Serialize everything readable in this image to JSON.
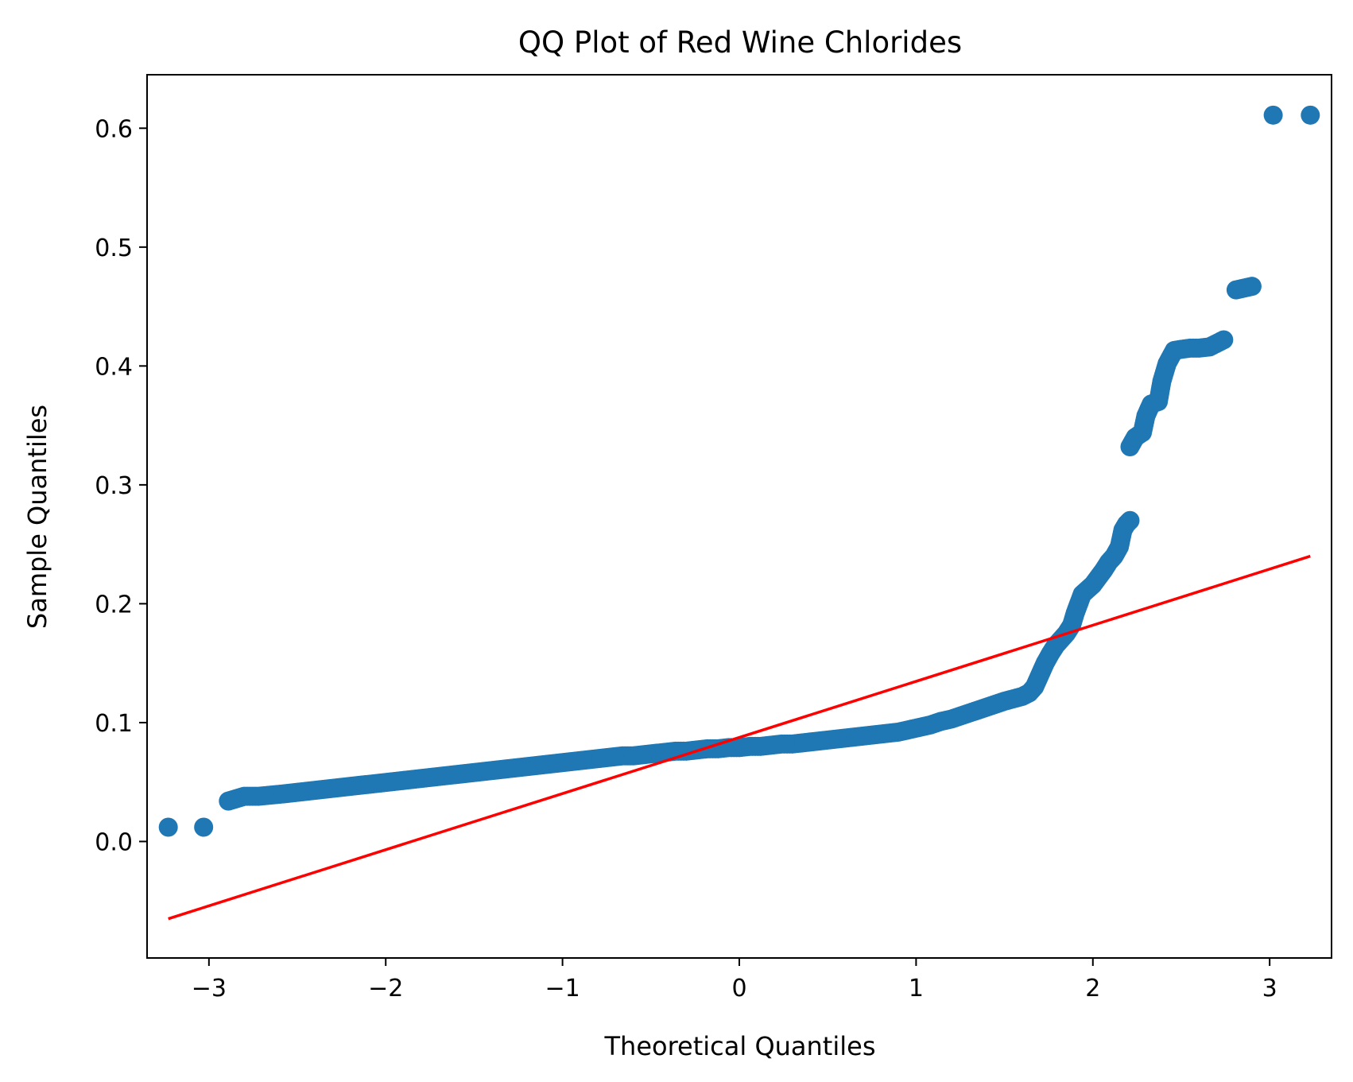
{
  "chart_data": {
    "type": "scatter",
    "title": "QQ Plot of Red Wine Chlorides",
    "xlabel": "Theoretical Quantiles",
    "ylabel": "Sample Quantiles",
    "xlim": [
      -3.35,
      3.35
    ],
    "ylim": [
      -0.098,
      0.645
    ],
    "x_ticks": [
      {
        "value": -3,
        "label": "−3"
      },
      {
        "value": -2,
        "label": "−2"
      },
      {
        "value": -1,
        "label": "−1"
      },
      {
        "value": 0,
        "label": "0"
      },
      {
        "value": 1,
        "label": "1"
      },
      {
        "value": 2,
        "label": "2"
      },
      {
        "value": 3,
        "label": "3"
      }
    ],
    "y_ticks": [
      {
        "value": 0.0,
        "label": "0.0"
      },
      {
        "value": 0.1,
        "label": "0.1"
      },
      {
        "value": 0.2,
        "label": "0.2"
      },
      {
        "value": 0.3,
        "label": "0.3"
      },
      {
        "value": 0.4,
        "label": "0.4"
      },
      {
        "value": 0.5,
        "label": "0.5"
      },
      {
        "value": 0.6,
        "label": "0.6"
      }
    ],
    "grid": false,
    "legend": "none",
    "marker_color": "#1f77b4",
    "line_color": "#ff0000",
    "reference_line": {
      "x": [
        -3.23,
        3.23
      ],
      "y": [
        -0.065,
        0.24
      ]
    },
    "series": [
      {
        "points": [
          [
            -3.23,
            0.012
          ],
          [
            -3.03,
            0.012
          ],
          [
            -2.89,
            0.034
          ],
          [
            -2.8,
            0.038
          ],
          [
            -2.72,
            0.038
          ],
          [
            -2.65,
            0.039
          ],
          [
            -2.58,
            0.04
          ],
          [
            -2.52,
            0.041
          ],
          [
            -2.46,
            0.042
          ],
          [
            -2.4,
            0.043
          ],
          [
            -2.34,
            0.044
          ],
          [
            -2.28,
            0.045
          ],
          [
            -2.22,
            0.046
          ],
          [
            -2.16,
            0.047
          ],
          [
            -2.1,
            0.048
          ],
          [
            -2.04,
            0.049
          ],
          [
            -1.98,
            0.05
          ],
          [
            -1.92,
            0.051
          ],
          [
            -1.86,
            0.052
          ],
          [
            -1.8,
            0.053
          ],
          [
            -1.74,
            0.054
          ],
          [
            -1.68,
            0.055
          ],
          [
            -1.62,
            0.056
          ],
          [
            -1.56,
            0.057
          ],
          [
            -1.5,
            0.058
          ],
          [
            -1.44,
            0.059
          ],
          [
            -1.38,
            0.06
          ],
          [
            -1.32,
            0.061
          ],
          [
            -1.26,
            0.062
          ],
          [
            -1.2,
            0.063
          ],
          [
            -1.14,
            0.064
          ],
          [
            -1.08,
            0.065
          ],
          [
            -1.02,
            0.066
          ],
          [
            -0.96,
            0.067
          ],
          [
            -0.9,
            0.068
          ],
          [
            -0.84,
            0.069
          ],
          [
            -0.78,
            0.07
          ],
          [
            -0.72,
            0.071
          ],
          [
            -0.66,
            0.072
          ],
          [
            -0.6,
            0.072
          ],
          [
            -0.54,
            0.073
          ],
          [
            -0.48,
            0.074
          ],
          [
            -0.42,
            0.075
          ],
          [
            -0.36,
            0.076
          ],
          [
            -0.3,
            0.076
          ],
          [
            -0.24,
            0.077
          ],
          [
            -0.18,
            0.078
          ],
          [
            -0.12,
            0.078
          ],
          [
            -0.06,
            0.079
          ],
          [
            0.0,
            0.079
          ],
          [
            0.06,
            0.08
          ],
          [
            0.12,
            0.08
          ],
          [
            0.18,
            0.081
          ],
          [
            0.24,
            0.082
          ],
          [
            0.3,
            0.082
          ],
          [
            0.36,
            0.083
          ],
          [
            0.42,
            0.084
          ],
          [
            0.48,
            0.085
          ],
          [
            0.54,
            0.086
          ],
          [
            0.6,
            0.087
          ],
          [
            0.66,
            0.088
          ],
          [
            0.72,
            0.089
          ],
          [
            0.78,
            0.09
          ],
          [
            0.84,
            0.091
          ],
          [
            0.9,
            0.092
          ],
          [
            0.96,
            0.094
          ],
          [
            1.02,
            0.096
          ],
          [
            1.08,
            0.098
          ],
          [
            1.14,
            0.101
          ],
          [
            1.2,
            0.103
          ],
          [
            1.26,
            0.106
          ],
          [
            1.32,
            0.109
          ],
          [
            1.38,
            0.112
          ],
          [
            1.44,
            0.115
          ],
          [
            1.5,
            0.118
          ],
          [
            1.55,
            0.12
          ],
          [
            1.6,
            0.122
          ],
          [
            1.64,
            0.125
          ],
          [
            1.67,
            0.13
          ],
          [
            1.7,
            0.14
          ],
          [
            1.73,
            0.15
          ],
          [
            1.76,
            0.158
          ],
          [
            1.79,
            0.165
          ],
          [
            1.82,
            0.17
          ],
          [
            1.85,
            0.175
          ],
          [
            1.88,
            0.182
          ],
          [
            1.9,
            0.192
          ],
          [
            1.92,
            0.2
          ],
          [
            1.94,
            0.208
          ],
          [
            1.97,
            0.212
          ],
          [
            2.0,
            0.216
          ],
          [
            2.03,
            0.222
          ],
          [
            2.06,
            0.228
          ],
          [
            2.09,
            0.235
          ],
          [
            2.12,
            0.24
          ],
          [
            2.15,
            0.248
          ],
          [
            2.17,
            0.262
          ],
          [
            2.19,
            0.267
          ],
          [
            2.21,
            0.27
          ],
          [
            2.21,
            0.332
          ],
          [
            2.24,
            0.34
          ],
          [
            2.28,
            0.344
          ],
          [
            2.3,
            0.358
          ],
          [
            2.33,
            0.368
          ],
          [
            2.37,
            0.37
          ],
          [
            2.39,
            0.387
          ],
          [
            2.42,
            0.402
          ],
          [
            2.46,
            0.413
          ],
          [
            2.5,
            0.414
          ],
          [
            2.55,
            0.415
          ],
          [
            2.6,
            0.415
          ],
          [
            2.66,
            0.416
          ],
          [
            2.74,
            0.422
          ],
          [
            2.81,
            0.464
          ],
          [
            2.9,
            0.467
          ],
          [
            3.02,
            0.611
          ],
          [
            3.23,
            0.611
          ]
        ]
      }
    ]
  }
}
